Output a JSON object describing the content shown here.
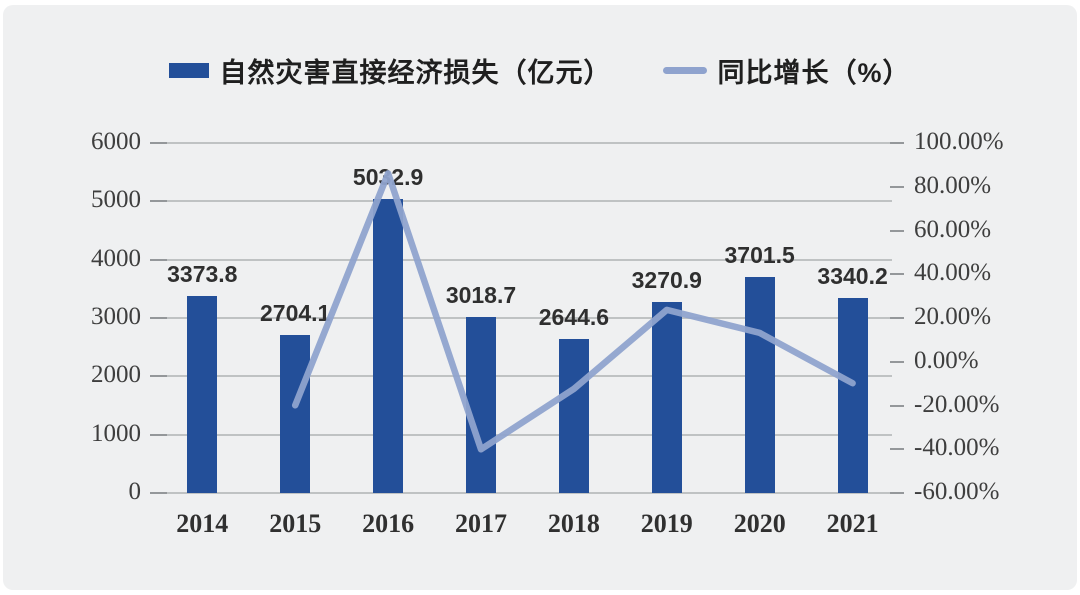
{
  "page": {
    "background": "#ffffff",
    "card_background": "#eff0f1"
  },
  "legend": {
    "items": [
      {
        "label": "自然灾害直接经济损失（亿元）",
        "color": "#234f99",
        "swatch": "bar"
      },
      {
        "label": "同比增长（%）",
        "color": "#8fa3ce",
        "swatch": "line"
      }
    ]
  },
  "chart_data": {
    "type": "bar",
    "title": "",
    "xlabel": "",
    "ylabel": "",
    "categories": [
      "2014",
      "2015",
      "2016",
      "2017",
      "2018",
      "2019",
      "2020",
      "2021"
    ],
    "series": [
      {
        "name": "自然灾害直接经济损失（亿元）",
        "type": "bar",
        "axis": "left",
        "color": "#234f99",
        "values": [
          3373.8,
          2704.1,
          5032.9,
          3018.7,
          2644.6,
          3270.9,
          3701.5,
          3340.2
        ],
        "value_labels": [
          "3373.8",
          "2704.1",
          "5032.9",
          "3018.7",
          "2644.6",
          "3270.9",
          "3701.5",
          "3340.2"
        ]
      },
      {
        "name": "同比增长（%）",
        "type": "line",
        "axis": "right",
        "color": "#8fa3ce",
        "values": [
          null,
          -19.9,
          86.1,
          -40.0,
          -12.4,
          23.7,
          13.2,
          -9.8
        ]
      }
    ],
    "left_axis": {
      "min": 0,
      "max": 6000,
      "step": 1000,
      "tick_labels_top_down": [
        "6000",
        "5000",
        "4000",
        "3000",
        "2000",
        "1000",
        "0"
      ]
    },
    "right_axis": {
      "min": -60,
      "max": 100,
      "step": 20,
      "tick_labels_top_down": [
        "100.00%",
        "80.00%",
        "60.00%",
        "40.00%",
        "20.00%",
        "0.00%",
        "-20.00%",
        "-40.00%",
        "-60.00%"
      ]
    },
    "grid": true,
    "legend_position": "top",
    "colors": {
      "gridline": "#b3b6b8",
      "axis_text": "#3e3e3e",
      "bar": "#234f99",
      "line": "#8fa3ce"
    }
  }
}
